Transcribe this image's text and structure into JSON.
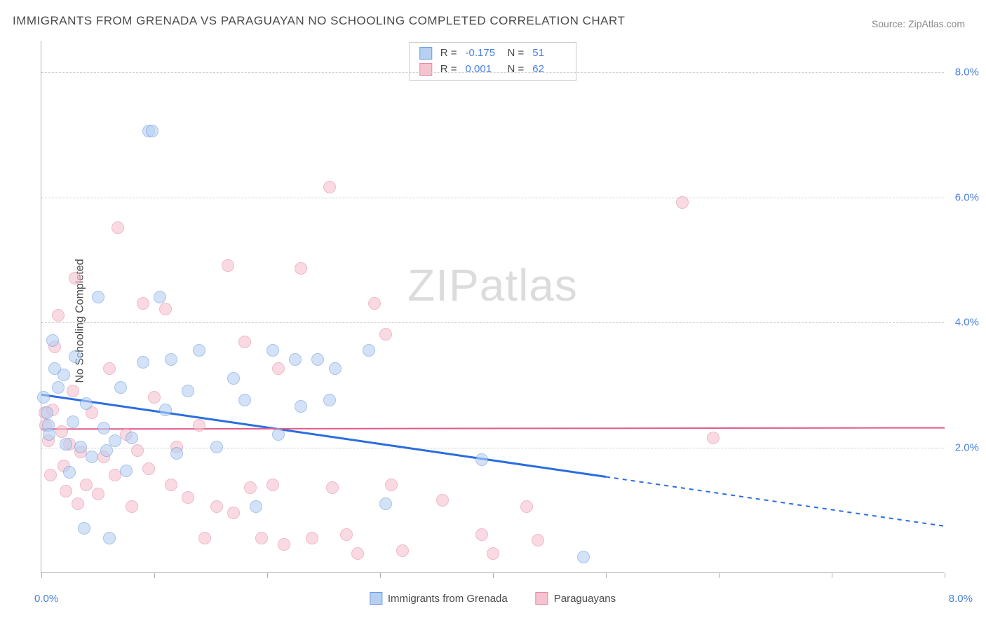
{
  "title": "IMMIGRANTS FROM GRENADA VS PARAGUAYAN NO SCHOOLING COMPLETED CORRELATION CHART",
  "source": "Source: ZipAtlas.com",
  "y_axis_label": "No Schooling Completed",
  "watermark_a": "ZIP",
  "watermark_b": "atlas",
  "chart": {
    "type": "scatter",
    "xlim": [
      0,
      8
    ],
    "ylim": [
      0,
      8.5
    ],
    "y_ticks": [
      2,
      4,
      6,
      8
    ],
    "y_tick_labels": [
      "2.0%",
      "4.0%",
      "6.0%",
      "8.0%"
    ],
    "x_ticks": [
      0,
      1,
      2,
      3,
      4,
      5,
      6,
      7,
      8
    ],
    "x_tick_labels": {
      "0": "0.0%",
      "8": "8.0%"
    },
    "grid_color": "#d0d0d0",
    "axis_color": "#b0b0b0",
    "tick_label_color": "#4a80e0",
    "background_color": "#ffffff",
    "marker_radius": 9,
    "series": [
      {
        "name": "Immigrants from Grenada",
        "fill": "#b7d0f2",
        "stroke": "#6a9de0",
        "fill_opacity": 0.6,
        "R": "-0.175",
        "N": "51",
        "trend": {
          "color": "#2a6de0",
          "width": 3,
          "y_start": 2.85,
          "y_end": 0.75,
          "solid_until_x": 5.0
        },
        "points": [
          [
            0.02,
            2.8
          ],
          [
            0.05,
            2.55
          ],
          [
            0.06,
            2.35
          ],
          [
            0.07,
            2.2
          ],
          [
            0.1,
            3.7
          ],
          [
            0.12,
            3.25
          ],
          [
            0.15,
            2.95
          ],
          [
            0.2,
            3.15
          ],
          [
            0.22,
            2.05
          ],
          [
            0.25,
            1.6
          ],
          [
            0.28,
            2.4
          ],
          [
            0.3,
            3.45
          ],
          [
            0.35,
            2.0
          ],
          [
            0.38,
            0.7
          ],
          [
            0.4,
            2.7
          ],
          [
            0.45,
            1.85
          ],
          [
            0.5,
            4.4
          ],
          [
            0.55,
            2.3
          ],
          [
            0.58,
            1.95
          ],
          [
            0.6,
            0.55
          ],
          [
            0.65,
            2.1
          ],
          [
            0.7,
            2.95
          ],
          [
            0.75,
            1.62
          ],
          [
            0.8,
            2.15
          ],
          [
            0.9,
            3.35
          ],
          [
            0.95,
            7.05
          ],
          [
            0.98,
            7.05
          ],
          [
            1.05,
            4.4
          ],
          [
            1.1,
            2.6
          ],
          [
            1.15,
            3.4
          ],
          [
            1.2,
            1.9
          ],
          [
            1.3,
            2.9
          ],
          [
            1.4,
            3.55
          ],
          [
            1.55,
            2.0
          ],
          [
            1.7,
            3.1
          ],
          [
            1.8,
            2.75
          ],
          [
            1.9,
            1.05
          ],
          [
            2.05,
            3.55
          ],
          [
            2.1,
            2.2
          ],
          [
            2.25,
            3.4
          ],
          [
            2.3,
            2.65
          ],
          [
            2.45,
            3.4
          ],
          [
            2.55,
            2.75
          ],
          [
            2.6,
            3.25
          ],
          [
            2.9,
            3.55
          ],
          [
            3.05,
            1.1
          ],
          [
            3.9,
            1.8
          ],
          [
            4.8,
            0.25
          ]
        ]
      },
      {
        "name": "Paraguayans",
        "fill": "#f6c3d0",
        "stroke": "#e78ba6",
        "fill_opacity": 0.6,
        "R": "0.001",
        "N": "62",
        "trend": {
          "color": "#e35a8a",
          "width": 2,
          "y_start": 2.3,
          "y_end": 2.32,
          "solid_until_x": 8.0
        },
        "points": [
          [
            0.03,
            2.55
          ],
          [
            0.04,
            2.35
          ],
          [
            0.06,
            2.1
          ],
          [
            0.08,
            1.55
          ],
          [
            0.1,
            2.6
          ],
          [
            0.12,
            3.6
          ],
          [
            0.15,
            4.1
          ],
          [
            0.18,
            2.25
          ],
          [
            0.2,
            1.7
          ],
          [
            0.22,
            1.3
          ],
          [
            0.25,
            2.05
          ],
          [
            0.28,
            2.9
          ],
          [
            0.3,
            4.7
          ],
          [
            0.32,
            1.1
          ],
          [
            0.35,
            1.92
          ],
          [
            0.4,
            1.4
          ],
          [
            0.45,
            2.55
          ],
          [
            0.5,
            1.25
          ],
          [
            0.55,
            1.85
          ],
          [
            0.6,
            3.25
          ],
          [
            0.65,
            1.55
          ],
          [
            0.68,
            5.5
          ],
          [
            0.75,
            2.2
          ],
          [
            0.8,
            1.05
          ],
          [
            0.85,
            1.95
          ],
          [
            0.9,
            4.3
          ],
          [
            0.95,
            1.65
          ],
          [
            1.0,
            2.8
          ],
          [
            1.1,
            4.2
          ],
          [
            1.15,
            1.4
          ],
          [
            1.2,
            2.0
          ],
          [
            1.3,
            1.2
          ],
          [
            1.4,
            2.35
          ],
          [
            1.45,
            0.55
          ],
          [
            1.55,
            1.05
          ],
          [
            1.65,
            4.9
          ],
          [
            1.7,
            0.95
          ],
          [
            1.8,
            3.68
          ],
          [
            1.85,
            1.35
          ],
          [
            1.95,
            0.55
          ],
          [
            2.05,
            1.4
          ],
          [
            2.1,
            3.25
          ],
          [
            2.15,
            0.45
          ],
          [
            2.3,
            4.85
          ],
          [
            2.4,
            0.55
          ],
          [
            2.55,
            6.15
          ],
          [
            2.58,
            1.35
          ],
          [
            2.7,
            0.6
          ],
          [
            2.8,
            0.3
          ],
          [
            2.95,
            4.3
          ],
          [
            3.05,
            3.8
          ],
          [
            3.1,
            1.4
          ],
          [
            3.2,
            0.35
          ],
          [
            3.55,
            1.15
          ],
          [
            3.9,
            0.6
          ],
          [
            4.0,
            0.3
          ],
          [
            4.3,
            1.05
          ],
          [
            4.4,
            0.52
          ],
          [
            5.68,
            5.9
          ],
          [
            5.95,
            2.15
          ]
        ]
      }
    ]
  },
  "legend_items": [
    {
      "label": "Immigrants from Grenada",
      "fill": "#b7d0f2",
      "stroke": "#6a9de0"
    },
    {
      "label": "Paraguayans",
      "fill": "#f6c3d0",
      "stroke": "#e78ba6"
    }
  ]
}
